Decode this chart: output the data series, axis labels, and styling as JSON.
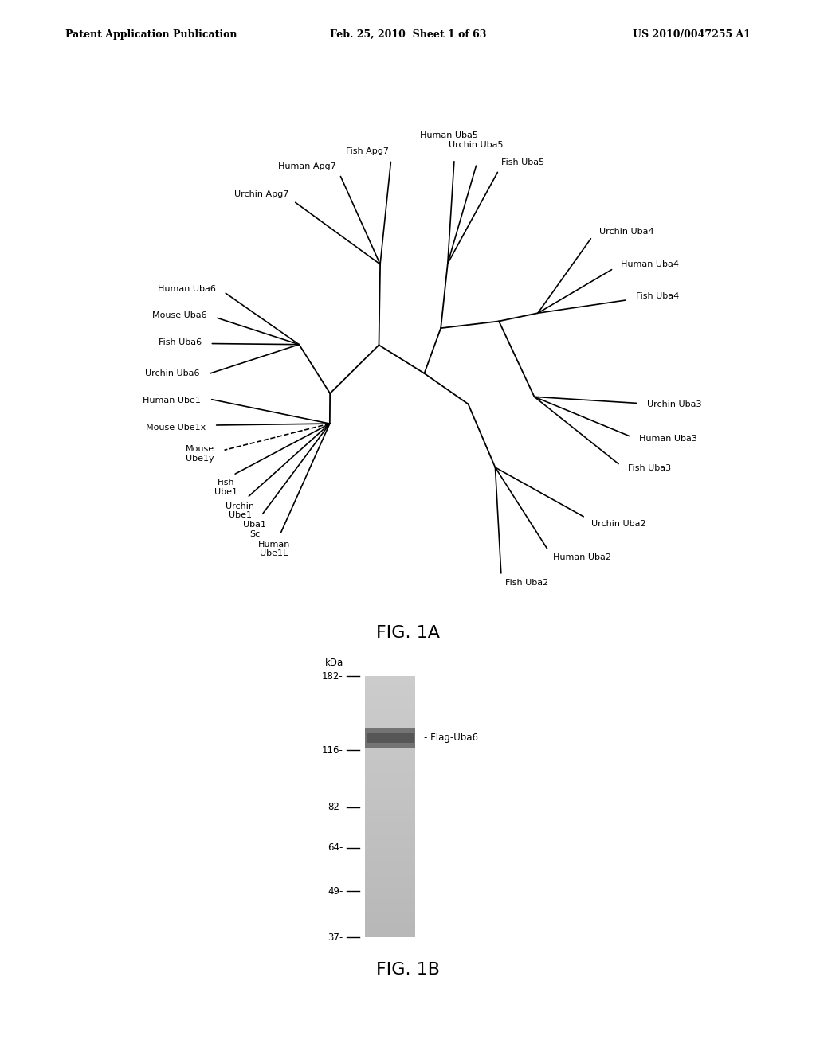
{
  "header_left": "Patent Application Publication",
  "header_center": "Feb. 25, 2010  Sheet 1 of 63",
  "header_right": "US 2010/0047255 A1",
  "fig1a_label": "FIG. 1A",
  "fig1b_label": "FIG. 1B",
  "background_color": "#ffffff",
  "line_color": "#000000",
  "text_color": "#000000",
  "header_fontsize": 9,
  "label_fontsize": 8.5,
  "fig_label_fontsize": 16,
  "kda_label": "kDa",
  "wb_markers": [
    182,
    116,
    82,
    64,
    49,
    37
  ],
  "wb_band_label": "- Flag-Uba6",
  "wb_band_kda": 125
}
